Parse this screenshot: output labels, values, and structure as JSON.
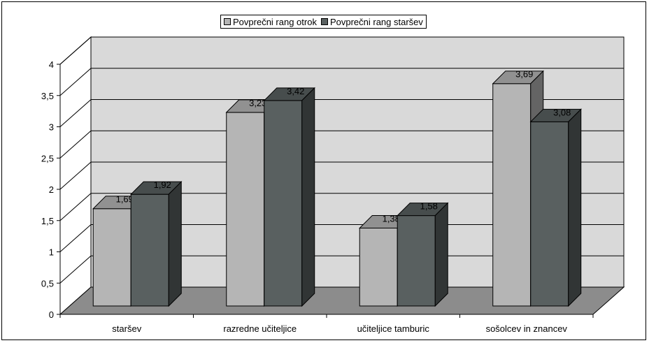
{
  "colors": {
    "series_otrok": "#b5b5b5",
    "series_starsev": "#596060",
    "wall": "#d9d9d9",
    "floor": "#8c8c8c"
  },
  "legend": {
    "items": [
      "Povprečni rang otrok",
      "Povprečni rang staršev"
    ]
  },
  "chart_data": {
    "type": "bar",
    "title": "",
    "xlabel": "",
    "ylabel": "",
    "ylim": [
      0,
      4
    ],
    "yticks": [
      "0",
      "0,5",
      "1",
      "1,5",
      "2",
      "2,5",
      "3",
      "3,5",
      "4"
    ],
    "categories": [
      "staršev",
      "razredne učiteljice",
      "učiteljice tamburic",
      "sošolcev in znancev"
    ],
    "series": [
      {
        "name": "Povprečni rang otrok",
        "values": [
          1.69,
          3.23,
          1.38,
          3.69
        ],
        "labels": [
          "1,69",
          "3,23",
          "1,38",
          "3,69"
        ]
      },
      {
        "name": "Povprečni rang staršev",
        "values": [
          1.92,
          3.42,
          1.58,
          3.08
        ],
        "labels": [
          "1,92",
          "3,42",
          "1,58",
          "3,08"
        ]
      }
    ],
    "grid": true,
    "legend_position": "top-center",
    "style": "3d-clustered-column"
  }
}
